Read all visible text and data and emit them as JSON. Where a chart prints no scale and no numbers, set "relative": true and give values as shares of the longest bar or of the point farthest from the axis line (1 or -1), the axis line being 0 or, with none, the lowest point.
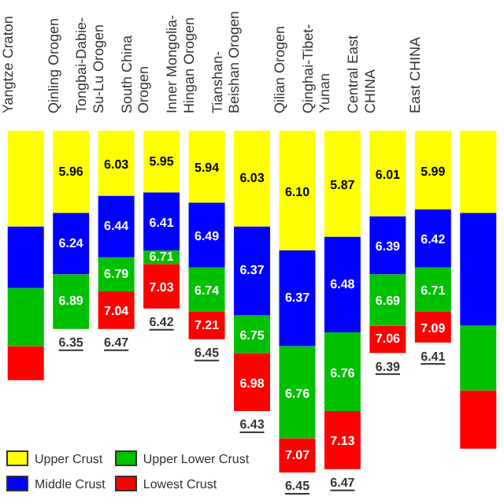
{
  "chart_data": {
    "type": "bar",
    "stacked": true,
    "relative": true,
    "legend": "bottom left",
    "categories": [
      "Yangtze Craton",
      "Qinling Orogen",
      "Tongbai-Dabie-Su-Lu Orogen",
      "South China Orogen",
      "Inner Mongolia-Hingan Orogen",
      "Tianshan-Beishan Orogen",
      "Qilian Orogen",
      "Qinghai-Tibet-Yunan",
      "Central East CHINA",
      "East CHINA",
      null
    ],
    "series": [
      {
        "name": "Upper Crust",
        "color": "#ffff00",
        "values": [
          -0.28,
          -0.24,
          -0.19,
          -0.18,
          -0.21,
          -0.28,
          -0.35,
          -0.31,
          -0.25,
          -0.23,
          -0.24
        ]
      },
      {
        "name": "Middle Crust",
        "color": "#0000ff",
        "values": [
          -0.18,
          -0.18,
          -0.18,
          -0.17,
          -0.19,
          -0.26,
          -0.28,
          -0.28,
          -0.17,
          -0.17,
          -0.33
        ]
      },
      {
        "name": "Upper Lower Crust",
        "color": "#00c000",
        "values": [
          -0.17,
          -0.16,
          -0.1,
          -0.04,
          -0.13,
          -0.11,
          -0.27,
          -0.23,
          -0.15,
          -0.13,
          -0.19
        ]
      },
      {
        "name": "Lowest Crust",
        "color": "#ff0000",
        "values": [
          -0.1,
          null,
          -0.11,
          -0.13,
          -0.08,
          -0.17,
          -0.1,
          -0.17,
          -0.08,
          -0.09,
          -0.17
        ]
      }
    ],
    "annotations": [
      {
        "text": "5.96",
        "x": "Qinling Orogen",
        "y": -0.12
      },
      {
        "text": "6.24",
        "x": "Qinling Orogen",
        "y": -0.33
      },
      {
        "text": "6.89",
        "x": "Qinling Orogen",
        "y": -0.5
      },
      {
        "text": "6.35",
        "x": "Qinling Orogen",
        "y": -0.58
      },
      {
        "text": "6.03",
        "x": "Tongbai-Dabie-Su-Lu Orogen",
        "y": -0.1
      },
      {
        "text": "6.44",
        "x": "Tongbai-Dabie-Su-Lu Orogen",
        "y": -0.28
      },
      {
        "text": "6.79",
        "x": "Tongbai-Dabie-Su-Lu Orogen",
        "y": -0.42
      },
      {
        "text": "7.04",
        "x": "Tongbai-Dabie-Su-Lu Orogen",
        "y": -0.53
      },
      {
        "text": "6.47",
        "x": "Tongbai-Dabie-Su-Lu Orogen",
        "y": -0.58
      },
      {
        "text": "5.95",
        "x": "South China Orogen",
        "y": -0.09
      },
      {
        "text": "6.41",
        "x": "South China Orogen",
        "y": -0.27
      },
      {
        "text": "6.71",
        "x": "South China Orogen",
        "y": -0.37
      },
      {
        "text": "7.03",
        "x": "South China Orogen",
        "y": -0.46
      },
      {
        "text": "6.42",
        "x": "South China Orogen",
        "y": -0.52
      },
      {
        "text": "5.94",
        "x": "Inner Mongolia-Hingan Orogen",
        "y": -0.11
      },
      {
        "text": "6.49",
        "x": "Inner Mongolia-Hingan Orogen",
        "y": -0.31
      },
      {
        "text": "6.74",
        "x": "Inner Mongolia-Hingan Orogen",
        "y": -0.47
      },
      {
        "text": "7.21",
        "x": "Inner Mongolia-Hingan Orogen",
        "y": -0.57
      },
      {
        "text": "6.45",
        "x": "Inner Mongolia-Hingan Orogen",
        "y": -0.61
      },
      {
        "text": "6.03",
        "x": "Tianshan-Beishan Orogen",
        "y": -0.14
      },
      {
        "text": "6.37",
        "x": "Tianshan-Beishan Orogen",
        "y": -0.41
      },
      {
        "text": "6.75",
        "x": "Tianshan-Beishan Orogen",
        "y": -0.6
      },
      {
        "text": "6.98",
        "x": "Tianshan-Beishan Orogen",
        "y": -0.74
      },
      {
        "text": "6.43",
        "x": "Tianshan-Beishan Orogen",
        "y": -0.82
      },
      {
        "text": "6.10",
        "x": "Qilian Orogen",
        "y": -0.18
      },
      {
        "text": "6.37",
        "x": "Qilian Orogen",
        "y": -0.49
      },
      {
        "text": "6.76",
        "x": "Qilian Orogen",
        "y": -0.77
      },
      {
        "text": "7.07",
        "x": "Qilian Orogen",
        "y": -0.95
      },
      {
        "text": "6.45",
        "x": "Qilian Orogen",
        "y": -1
      },
      {
        "text": "5.87",
        "x": "Qinghai-Tibet-Yunan",
        "y": -0.16
      },
      {
        "text": "6.48",
        "x": "Qinghai-Tibet-Yunan",
        "y": -0.45
      },
      {
        "text": "6.76",
        "x": "Qinghai-Tibet-Yunan",
        "y": -0.71
      },
      {
        "text": "7.13",
        "x": "Qinghai-Tibet-Yunan",
        "y": -0.91
      },
      {
        "text": "6.47",
        "x": "Qinghai-Tibet-Yunan",
        "y": -0.99
      },
      {
        "text": "6.01",
        "x": "Central East CHINA",
        "y": -0.13
      },
      {
        "text": "6.39",
        "x": "Central East CHINA",
        "y": -0.34
      },
      {
        "text": "6.69",
        "x": "Central East CHINA",
        "y": -0.5
      },
      {
        "text": "7.06",
        "x": "Central East CHINA",
        "y": -0.61
      },
      {
        "text": "6.39",
        "x": "Central East CHINA",
        "y": -0.65
      },
      {
        "text": "5.99",
        "x": "East CHINA",
        "y": -0.12
      },
      {
        "text": "6.42",
        "x": "East CHINA",
        "y": -0.32
      },
      {
        "text": "6.71",
        "x": "East CHINA",
        "y": -0.47
      },
      {
        "text": "7.09",
        "x": "East CHINA",
        "y": -0.58
      },
      {
        "text": "6.41",
        "x": "East CHINA",
        "y": -0.62
      }
    ]
  }
}
